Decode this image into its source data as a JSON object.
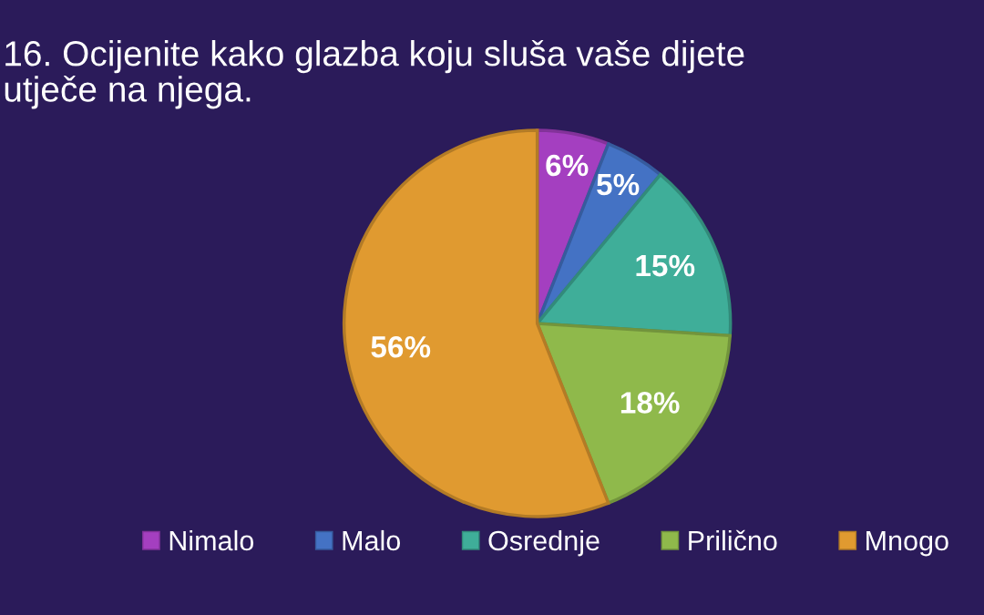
{
  "chart_data": {
    "type": "pie",
    "title": "16. Ocijenite kako glazba koju sluša vaše dijete\nutječe na njega.",
    "categories": [
      "Nimalo",
      "Malo",
      "Osrednje",
      "Prilično",
      "Mnogo"
    ],
    "values": [
      6,
      5,
      15,
      18,
      56
    ],
    "value_labels": [
      "6%",
      "5%",
      "15%",
      "18%",
      "56%"
    ],
    "colors": [
      "#a43fc0",
      "#4472c4",
      "#3fae99",
      "#8fb94b",
      "#e09a30"
    ],
    "legend": "bottom"
  }
}
